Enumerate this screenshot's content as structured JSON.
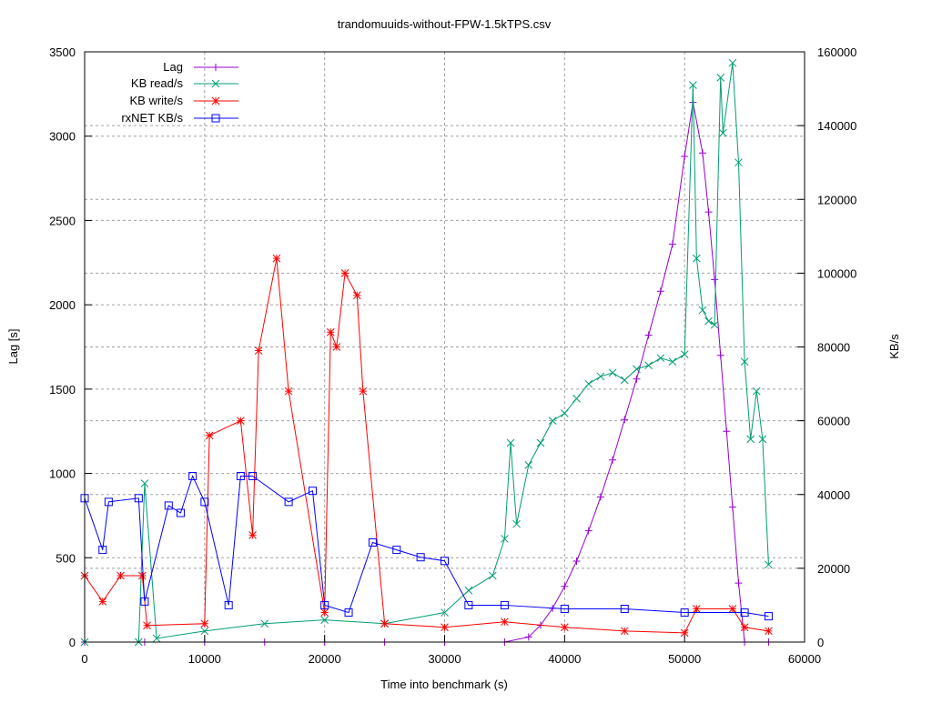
{
  "chart_data": {
    "type": "line",
    "title": "trandomuuids-without-FPW-1.5kTPS.csv",
    "xlabel": "Time into benchmark (s)",
    "ylabel": "Lag [s]",
    "y2label": "KB/s",
    "xlim": [
      0,
      60000
    ],
    "ylim": [
      0,
      3500
    ],
    "y2lim": [
      0,
      160000
    ],
    "xticks": [
      0,
      10000,
      20000,
      30000,
      40000,
      50000,
      60000
    ],
    "yticks": [
      0,
      500,
      1000,
      1500,
      2000,
      2500,
      3000,
      3500
    ],
    "y2ticks": [
      0,
      20000,
      40000,
      60000,
      80000,
      100000,
      120000,
      140000,
      160000
    ],
    "grid": true,
    "legend_position": "top-left",
    "series": [
      {
        "name": "Lag",
        "axis": "y1",
        "color": "#9400d3",
        "marker": "plus",
        "x": [
          0,
          5000,
          10000,
          15000,
          20000,
          25000,
          30000,
          35000,
          37000,
          38000,
          39000,
          40000,
          41000,
          42000,
          43000,
          44000,
          45000,
          46000,
          47000,
          48000,
          49000,
          50000,
          50700,
          51500,
          52000,
          52500,
          53000,
          53500,
          54000,
          54500,
          55000,
          57000
        ],
        "values": [
          0,
          0,
          0,
          0,
          0,
          0,
          0,
          0,
          30,
          100,
          200,
          330,
          480,
          660,
          860,
          1080,
          1320,
          1560,
          1820,
          2080,
          2360,
          2880,
          3200,
          2900,
          2550,
          2150,
          1700,
          1250,
          800,
          350,
          0,
          0
        ]
      },
      {
        "name": "KB read/s",
        "axis": "y2",
        "color": "#009e73",
        "marker": "x",
        "x": [
          0,
          4500,
          5000,
          6000,
          10000,
          15000,
          20000,
          25000,
          30000,
          32000,
          34000,
          35000,
          35500,
          36000,
          37000,
          38000,
          39000,
          40000,
          41000,
          42000,
          43000,
          44000,
          45000,
          46000,
          47000,
          48000,
          49000,
          50000,
          50700,
          51000,
          51500,
          52000,
          52500,
          53000,
          53200,
          54000,
          54500,
          55000,
          55500,
          56000,
          56500,
          57000
        ],
        "values": [
          0,
          0,
          43000,
          1000,
          3000,
          5000,
          6000,
          5000,
          8000,
          14000,
          18000,
          28000,
          54000,
          32000,
          48000,
          54000,
          60000,
          62000,
          66000,
          70000,
          72000,
          73000,
          71000,
          74000,
          75000,
          77000,
          76000,
          78000,
          151000,
          104000,
          90000,
          87000,
          86000,
          153000,
          138000,
          157000,
          130000,
          76000,
          55000,
          68000,
          55000,
          21000
        ]
      },
      {
        "name": "KB write/s",
        "axis": "y2",
        "color": "#ff0000",
        "marker": "star",
        "x": [
          0,
          1500,
          3000,
          4800,
          5200,
          10000,
          10400,
          13000,
          14000,
          14500,
          16000,
          17000,
          20000,
          20500,
          21000,
          21700,
          22700,
          23200,
          25000,
          30000,
          35000,
          40000,
          45000,
          50000,
          51000,
          54000,
          55000,
          57000
        ],
        "values": [
          18000,
          11000,
          18000,
          18000,
          4500,
          5000,
          56000,
          60000,
          29000,
          79000,
          104000,
          68000,
          8000,
          84000,
          80000,
          100000,
          94000,
          68000,
          5000,
          4000,
          5500,
          4000,
          3000,
          2500,
          9000,
          9000,
          4000,
          3000
        ]
      },
      {
        "name": "rxNET KB/s",
        "axis": "y2",
        "color": "#0000ff",
        "marker": "square",
        "x": [
          0,
          1500,
          2000,
          4500,
          5000,
          7000,
          8000,
          9000,
          10000,
          12000,
          13000,
          14000,
          17000,
          19000,
          20000,
          22000,
          24000,
          26000,
          28000,
          30000,
          32000,
          35000,
          40000,
          45000,
          50000,
          55000,
          57000
        ],
        "values": [
          39000,
          25000,
          38000,
          39000,
          11000,
          37000,
          35000,
          45000,
          38000,
          10000,
          45000,
          45000,
          38000,
          41000,
          10000,
          8000,
          27000,
          25000,
          23000,
          22000,
          10000,
          10000,
          9000,
          9000,
          8000,
          8000,
          7000
        ]
      }
    ]
  },
  "legend": {
    "items": [
      {
        "label": "Lag"
      },
      {
        "label": "KB read/s"
      },
      {
        "label": "KB write/s"
      },
      {
        "label": "rxNET KB/s"
      }
    ]
  }
}
